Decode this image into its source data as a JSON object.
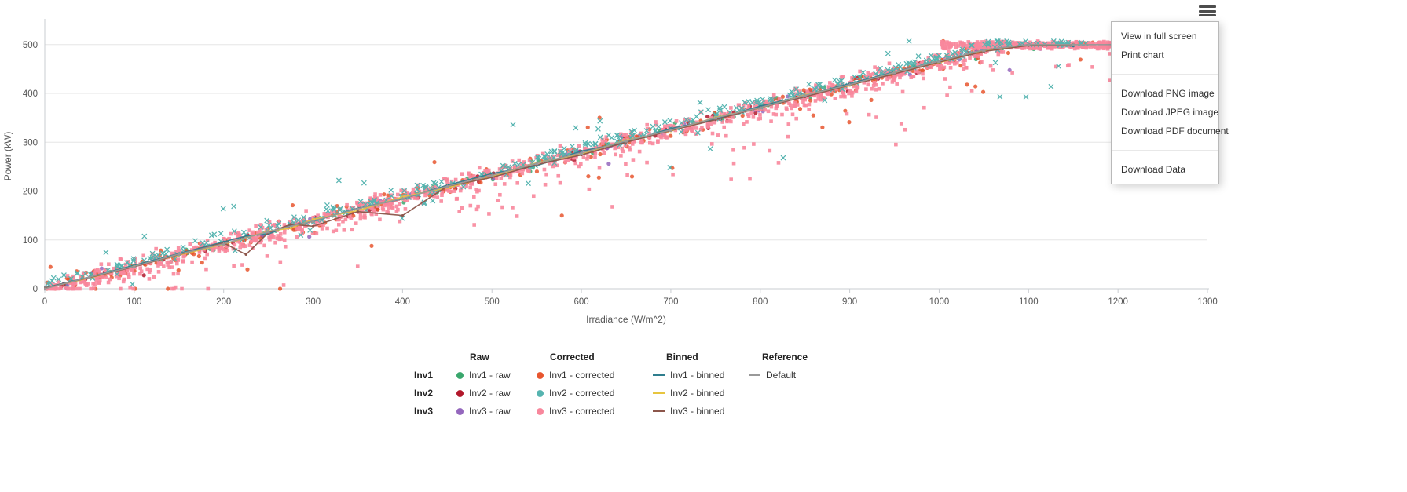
{
  "menu": {
    "button_name": "chart-context-menu",
    "items": [
      {
        "type": "item",
        "label": "View in full screen"
      },
      {
        "type": "item",
        "label": "Print chart"
      },
      {
        "type": "divider"
      },
      {
        "type": "item",
        "label": "Download PNG image"
      },
      {
        "type": "item",
        "label": "Download JPEG image"
      },
      {
        "type": "item",
        "label": "Download PDF document"
      },
      {
        "type": "divider"
      },
      {
        "type": "item",
        "label": "Download Data"
      }
    ]
  },
  "chart_data": {
    "type": "scatter",
    "title": "",
    "xlabel": "Irradiance (W/m^2)",
    "ylabel": "Power (kW)",
    "xlim": [
      0,
      1300
    ],
    "ylim": [
      0,
      543
    ],
    "x_ticks": [
      0,
      100,
      200,
      300,
      400,
      500,
      600,
      700,
      800,
      900,
      1000,
      1100,
      1200,
      1300
    ],
    "y_ticks": [
      0,
      100,
      200,
      300,
      400,
      500
    ],
    "grid": "horizontal-only",
    "legend_position": "bottom",
    "slope": 0.465,
    "cap": 500,
    "relationship": "power_kW ~= min(500, 0.465 * irradiance), saturating above ~1075 W/m^2",
    "binned_x": [
      0,
      50,
      100,
      150,
      200,
      225,
      250,
      275,
      300,
      350,
      400,
      450,
      500,
      550,
      600,
      650,
      700,
      750,
      800,
      850,
      900,
      950,
      1000,
      1050,
      1100,
      1150
    ],
    "series": [
      {
        "name": "Inv1 - raw",
        "type": "scatter",
        "marker": "circle",
        "color": "#3aa76d",
        "seed": 11,
        "n": 90,
        "x_range": [
          0,
          1150
        ],
        "y_offset": 2,
        "y_noise": 10,
        "outlier_frac": 0.05,
        "outlier_drop": 70
      },
      {
        "name": "Inv2 - raw",
        "type": "scatter",
        "marker": "circle",
        "color": "#b2182b",
        "seed": 22,
        "n": 85,
        "x_range": [
          0,
          1150
        ],
        "y_offset": 0,
        "y_noise": 11,
        "outlier_frac": 0.06,
        "outlier_drop": 80
      },
      {
        "name": "Inv3 - raw",
        "type": "scatter",
        "marker": "circle",
        "color": "#9467bd",
        "seed": 33,
        "n": 75,
        "x_range": [
          0,
          1150
        ],
        "y_offset": 0,
        "y_noise": 11,
        "outlier_frac": 0.05,
        "outlier_drop": 70
      },
      {
        "name": "Inv1 - corrected",
        "type": "scatter",
        "marker": "circle",
        "color": "#e8562f",
        "seed": 44,
        "n": 330,
        "x_range": [
          0,
          1180
        ],
        "y_offset": 0,
        "y_noise": 14,
        "outlier_frac": 0.1,
        "outlier_drop": 160,
        "outlier_up_frac": 0.03,
        "outlier_up": 60
      },
      {
        "name": "Inv3 - corrected",
        "type": "scatter",
        "marker": "square",
        "color": "#f8879c",
        "seed": 66,
        "n": 1250,
        "x_range": [
          0,
          1250
        ],
        "y_offset": -2,
        "y_noise": 22,
        "outlier_frac": 0.13,
        "outlier_drop": 170,
        "extra_band": {
          "n": 280,
          "x_range": [
            1000,
            1295
          ],
          "y_range": [
            491,
            506
          ]
        }
      },
      {
        "name": "Inv2 - corrected",
        "type": "scatter",
        "marker": "x",
        "color": "#56b4b0",
        "seed": 55,
        "n": 380,
        "x_range": [
          0,
          1165
        ],
        "y_offset": 8,
        "y_noise": 14,
        "outlier_frac": 0.07,
        "outlier_drop": 130,
        "outlier_up_frac": 0.05,
        "outlier_up": 80
      },
      {
        "name": "Inv1 - binned",
        "type": "line",
        "color": "#2f7e8e",
        "x_ref": "binned_x",
        "y": [
          2,
          24,
          48,
          72,
          96,
          108,
          112,
          130,
          138,
          165,
          184,
          212,
          236,
          252,
          282,
          300,
          328,
          347,
          374,
          396,
          420,
          444,
          466,
          489,
          500,
          497
        ]
      },
      {
        "name": "Inv2 - binned",
        "type": "line",
        "color": "#e7c53f",
        "x_ref": "binned_x",
        "y": [
          1,
          22,
          46,
          69,
          91,
          104,
          118,
          124,
          142,
          160,
          188,
          207,
          230,
          258,
          276,
          304,
          323,
          351,
          370,
          397,
          416,
          443,
          463,
          487,
          499,
          500
        ]
      },
      {
        "name": "Inv3 - binned",
        "type": "line",
        "color": "#8c564b",
        "x_ref": "binned_x",
        "y": [
          1,
          23,
          45,
          70,
          94,
          70,
          115,
          132,
          128,
          158,
          150,
          210,
          228,
          254,
          274,
          300,
          324,
          346,
          371,
          393,
          417,
          440,
          464,
          486,
          498,
          500
        ]
      },
      {
        "name": "Default",
        "type": "line",
        "color": "#999999",
        "marker": "triangle",
        "x": [
          0,
          50,
          100,
          150,
          200,
          250,
          300,
          350,
          400,
          450,
          500,
          550,
          600,
          650,
          700,
          750,
          800,
          850,
          900,
          950,
          1000,
          1050,
          1100,
          1150,
          1200,
          1250,
          1300
        ],
        "y": [
          0,
          24,
          46,
          71,
          92,
          117,
          139,
          164,
          185,
          210,
          232,
          257,
          278,
          303,
          325,
          350,
          371,
          396,
          418,
          443,
          466,
          489,
          500,
          500,
          500,
          500,
          500
        ]
      }
    ]
  },
  "legend": {
    "headers": [
      "Raw",
      "Corrected",
      "Binned",
      "Reference"
    ],
    "rows": [
      {
        "label": "Inv1",
        "raw": {
          "text": "Inv1 - raw",
          "color": "#3aa76d",
          "marker": "dot"
        },
        "corrected": {
          "text": "Inv1 - corrected",
          "color": "#e8562f",
          "marker": "dot"
        },
        "binned": {
          "text": "Inv1 - binned",
          "color": "#2f7e8e",
          "marker": "line"
        },
        "reference": {
          "text": "Default",
          "color": "#999999",
          "marker": "line"
        }
      },
      {
        "label": "Inv2",
        "raw": {
          "text": "Inv2 - raw",
          "color": "#b2182b",
          "marker": "dot"
        },
        "corrected": {
          "text": "Inv2 - corrected",
          "color": "#56b4b0",
          "marker": "dot"
        },
        "binned": {
          "text": "Inv2 - binned",
          "color": "#e7c53f",
          "marker": "line"
        }
      },
      {
        "label": "Inv3",
        "raw": {
          "text": "Inv3 - raw",
          "color": "#9467bd",
          "marker": "dot"
        },
        "corrected": {
          "text": "Inv3 - corrected",
          "color": "#f8879c",
          "marker": "dot"
        },
        "binned": {
          "text": "Inv3 - binned",
          "color": "#8c564b",
          "marker": "line"
        }
      }
    ]
  },
  "colors": {
    "grid": "#e6e6e6",
    "axis": "#c9ccd1",
    "tick_label": "#555555",
    "axis_title": "#555555",
    "legend_text": "#333333",
    "menu_text": "#303030",
    "menu_border": "#b9b9b9",
    "hamburger": "#4d4d4d"
  }
}
